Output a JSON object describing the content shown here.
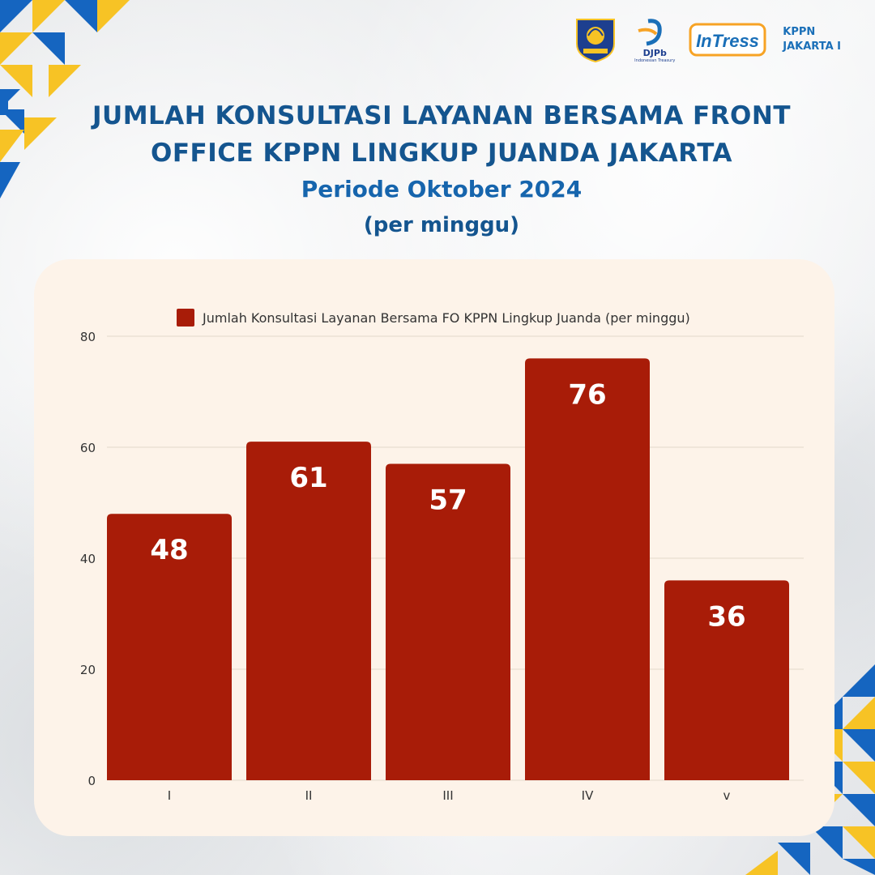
{
  "header": {
    "logo_kppn_line1": "KPPN",
    "logo_kppn_line2": "JAKARTA I",
    "logo_djpb_text": "DJPb",
    "logo_djpb_sub": "Indonesian Treasury",
    "logo_intress_text": "InTress"
  },
  "title": {
    "line1": "JUMLAH KONSULTASI LAYANAN BERSAMA FRONT",
    "line2": "OFFICE KPPN LINGKUP JUANDA JAKARTA",
    "line3": "Periode Oktober 2024",
    "line4": "(per minggu)"
  },
  "colors": {
    "bar": "#a81c08",
    "title": "#14558f",
    "card": "#fdf3e9",
    "accent_yellow": "#f7c325",
    "accent_blue": "#1565c0"
  },
  "chart_data": {
    "type": "bar",
    "categories": [
      "I",
      "II",
      "III",
      "IV",
      "v"
    ],
    "series": [
      {
        "name": "Jumlah Konsultasi Layanan Bersama FO KPPN Lingkup Juanda (per minggu)",
        "values": [
          48,
          61,
          57,
          76,
          36
        ]
      }
    ],
    "data_labels": [
      "48",
      "61",
      "57",
      "76",
      "36"
    ],
    "ylim": [
      0,
      80
    ],
    "yticks": [
      0,
      20,
      40,
      60,
      80
    ],
    "grid": true,
    "legend": "top-center"
  }
}
